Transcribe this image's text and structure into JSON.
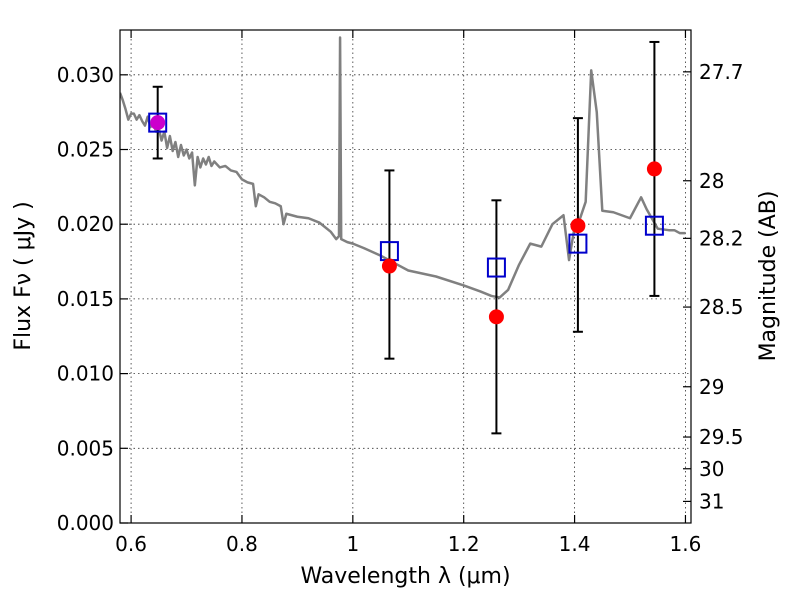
{
  "chart_data": {
    "type": "scatter",
    "xlabel": "Wavelength  λ (μm)",
    "ylabel_left": "Flux  Fν  ( μJy )",
    "ylabel_right": "Magnitude (AB)",
    "xlim": [
      0.58,
      1.61
    ],
    "ylim": [
      0.0,
      0.033
    ],
    "x_ticks": [
      0.6,
      0.8,
      1.0,
      1.2,
      1.4,
      1.6
    ],
    "x_tick_labels": [
      "0.6",
      "0.8",
      "1",
      "1.2",
      "1.4",
      "1.6"
    ],
    "y_ticks": [
      0.0,
      0.005,
      0.01,
      0.015,
      0.02,
      0.025,
      0.03
    ],
    "y_tick_labels": [
      "0.000",
      "0.005",
      "0.010",
      "0.015",
      "0.020",
      "0.025",
      "0.030"
    ],
    "right_ticks": [
      27.7,
      28,
      28.2,
      28.5,
      29,
      29.5,
      30,
      31
    ],
    "right_tick_labels": [
      "27.7",
      "28",
      "28.2",
      "28.5",
      "29",
      "29.5",
      "30",
      "31"
    ],
    "grid": true,
    "series": [
      {
        "kind": "line",
        "color": "#808080",
        "points": [
          [
            0.58,
            0.0288
          ],
          [
            0.585,
            0.0283
          ],
          [
            0.59,
            0.0277
          ],
          [
            0.595,
            0.027
          ],
          [
            0.6,
            0.0274
          ],
          [
            0.605,
            0.0274
          ],
          [
            0.61,
            0.027
          ],
          [
            0.615,
            0.0273
          ],
          [
            0.62,
            0.0269
          ],
          [
            0.625,
            0.0266
          ],
          [
            0.63,
            0.0272
          ],
          [
            0.635,
            0.0265
          ],
          [
            0.64,
            0.0268
          ],
          [
            0.645,
            0.0262
          ],
          [
            0.65,
            0.0264
          ],
          [
            0.655,
            0.0256
          ],
          [
            0.66,
            0.0262
          ],
          [
            0.665,
            0.0251
          ],
          [
            0.67,
            0.0259
          ],
          [
            0.675,
            0.0249
          ],
          [
            0.68,
            0.0255
          ],
          [
            0.685,
            0.0245
          ],
          [
            0.69,
            0.0253
          ],
          [
            0.695,
            0.0246
          ],
          [
            0.7,
            0.025
          ],
          [
            0.705,
            0.0244
          ],
          [
            0.71,
            0.0248
          ],
          [
            0.715,
            0.0226
          ],
          [
            0.72,
            0.0245
          ],
          [
            0.725,
            0.0238
          ],
          [
            0.73,
            0.0244
          ],
          [
            0.735,
            0.024
          ],
          [
            0.74,
            0.0245
          ],
          [
            0.745,
            0.0239
          ],
          [
            0.75,
            0.0242
          ],
          [
            0.76,
            0.0238
          ],
          [
            0.77,
            0.0239
          ],
          [
            0.78,
            0.0236
          ],
          [
            0.79,
            0.0235
          ],
          [
            0.8,
            0.023
          ],
          [
            0.81,
            0.0228
          ],
          [
            0.82,
            0.0227
          ],
          [
            0.825,
            0.0212
          ],
          [
            0.83,
            0.022
          ],
          [
            0.84,
            0.0218
          ],
          [
            0.85,
            0.0215
          ],
          [
            0.86,
            0.0214
          ],
          [
            0.87,
            0.0212
          ],
          [
            0.875,
            0.02
          ],
          [
            0.88,
            0.0207
          ],
          [
            0.9,
            0.0205
          ],
          [
            0.92,
            0.0204
          ],
          [
            0.94,
            0.0201
          ],
          [
            0.96,
            0.0195
          ],
          [
            0.97,
            0.019
          ],
          [
            0.975,
            0.0192
          ],
          [
            0.977,
            0.0325
          ],
          [
            0.979,
            0.019
          ],
          [
            0.99,
            0.0188
          ],
          [
            1.0,
            0.0187
          ],
          [
            1.02,
            0.0184
          ],
          [
            1.05,
            0.0179
          ],
          [
            1.08,
            0.0173
          ],
          [
            1.1,
            0.0169
          ],
          [
            1.15,
            0.0165
          ],
          [
            1.2,
            0.0159
          ],
          [
            1.23,
            0.0155
          ],
          [
            1.25,
            0.0152
          ],
          [
            1.265,
            0.0151
          ],
          [
            1.28,
            0.0156
          ],
          [
            1.3,
            0.0173
          ],
          [
            1.32,
            0.0187
          ],
          [
            1.34,
            0.0185
          ],
          [
            1.36,
            0.02
          ],
          [
            1.38,
            0.0206
          ],
          [
            1.39,
            0.0176
          ],
          [
            1.4,
            0.0198
          ],
          [
            1.41,
            0.0204
          ],
          [
            1.42,
            0.0215
          ],
          [
            1.43,
            0.0303
          ],
          [
            1.44,
            0.0275
          ],
          [
            1.45,
            0.0209
          ],
          [
            1.47,
            0.0208
          ],
          [
            1.5,
            0.0204
          ],
          [
            1.52,
            0.0218
          ],
          [
            1.53,
            0.021
          ],
          [
            1.55,
            0.0197
          ],
          [
            1.57,
            0.0196
          ],
          [
            1.58,
            0.0196
          ],
          [
            1.59,
            0.0194
          ],
          [
            1.6,
            0.0194
          ]
        ]
      },
      {
        "kind": "squares",
        "color": "#0000cc",
        "points": [
          [
            0.648,
            0.0268
          ],
          [
            1.066,
            0.0182
          ],
          [
            1.259,
            0.0171
          ],
          [
            1.406,
            0.0187
          ],
          [
            1.544,
            0.0199
          ]
        ]
      },
      {
        "kind": "points-with-error",
        "color": "#ff0000",
        "points": [
          {
            "x": 0.648,
            "y": 0.0268,
            "ylow": 0.0244,
            "yhigh": 0.0292,
            "color": "#cc00cc"
          },
          {
            "x": 1.066,
            "y": 0.0172,
            "ylow": 0.011,
            "yhigh": 0.0236
          },
          {
            "x": 1.259,
            "y": 0.0138,
            "ylow": 0.006,
            "yhigh": 0.0216
          },
          {
            "x": 1.406,
            "y": 0.0199,
            "ylow": 0.0128,
            "yhigh": 0.0271
          },
          {
            "x": 1.544,
            "y": 0.0237,
            "ylow": 0.0152,
            "yhigh": 0.0322
          }
        ]
      }
    ]
  }
}
